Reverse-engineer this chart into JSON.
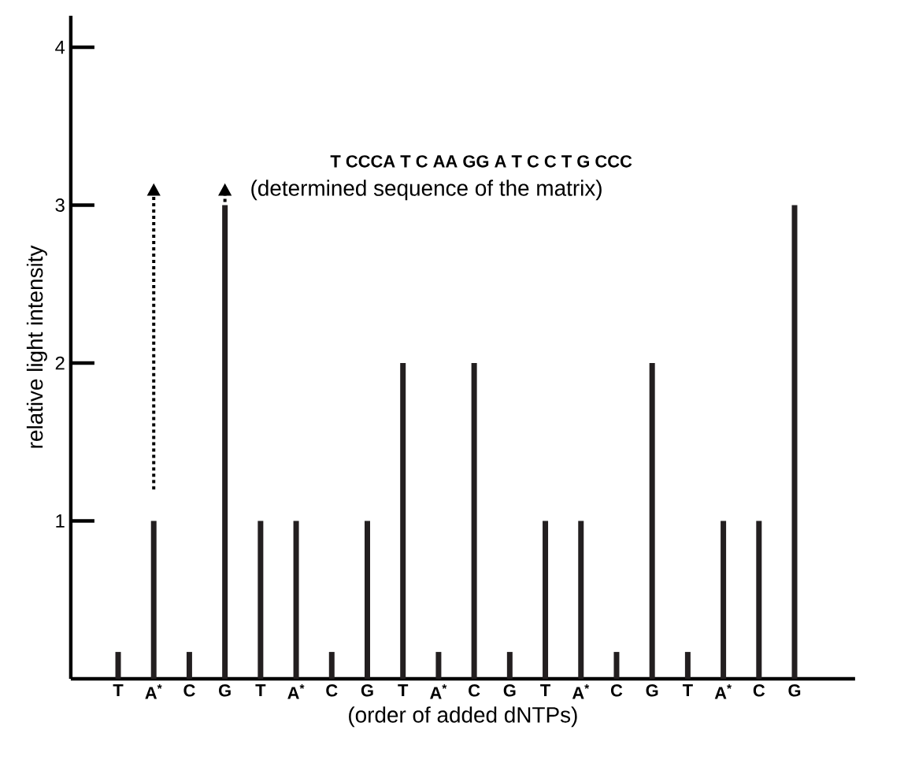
{
  "chart_data": {
    "type": "bar",
    "xlabel": "(order of added dNTPs)",
    "ylabel": "relative light intensity",
    "categories": [
      "T",
      "A$^{*}$",
      "C",
      "G",
      "T",
      "A$^{*}$",
      "C",
      "G",
      "T",
      "A$^{*}$",
      "C",
      "G",
      "T",
      "A$^{*}$",
      "C",
      "G",
      "T",
      "A$^{*}$",
      "C",
      "G"
    ],
    "values": [
      0.17,
      1,
      0.17,
      3,
      1,
      1,
      0.17,
      1,
      2,
      0.17,
      2,
      0.17,
      1,
      1,
      0.17,
      2,
      0.17,
      1,
      1,
      3
    ],
    "color": "#231f20",
    "ylim": [
      0,
      4.2
    ],
    "yticks": [
      1,
      2,
      3,
      4
    ],
    "grid": false,
    "annotations": [
      "T  CCCA T     C AA  GG     A T     C C   T  G CCC",
      "(determined sequence of the matrix)"
    ]
  }
}
